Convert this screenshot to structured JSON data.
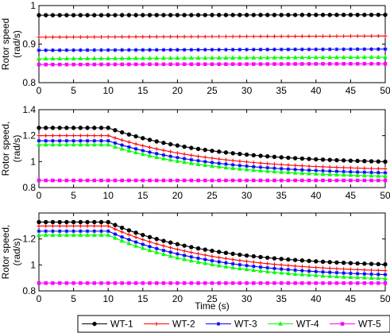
{
  "figure": {
    "xlabel": "Time (s)",
    "legend": {
      "placement": "bottom-center",
      "entries": [
        {
          "name": "WT-1",
          "color": "#000000",
          "marker": "circle"
        },
        {
          "name": "WT-2",
          "color": "#ff0000",
          "marker": "plus"
        },
        {
          "name": "WT-3",
          "color": "#0000ff",
          "marker": "star"
        },
        {
          "name": "WT-4",
          "color": "#00ff00",
          "marker": "triangle"
        },
        {
          "name": "WT-5",
          "color": "#ff00ff",
          "marker": "square"
        }
      ]
    }
  },
  "chart_data": [
    {
      "type": "line",
      "ylabel": [
        "Rotor speed",
        "(rad/s)"
      ],
      "xlim": [
        0,
        50
      ],
      "ylim": [
        0.8,
        1.0
      ],
      "xticks": [
        0,
        5,
        10,
        15,
        20,
        25,
        30,
        35,
        40,
        45,
        50
      ],
      "yticks": [
        0.8,
        0.9,
        1.0
      ],
      "ytick_labels": [
        "0.8",
        "0.9",
        "1"
      ],
      "grid": false,
      "series": [
        {
          "name": "WT-1",
          "model": "flat",
          "y0": 0.975,
          "yend": 0.976
        },
        {
          "name": "WT-2",
          "model": "flat",
          "y0": 0.918,
          "yend": 0.921
        },
        {
          "name": "WT-3",
          "model": "flat",
          "y0": 0.884,
          "yend": 0.887
        },
        {
          "name": "WT-4",
          "model": "flat",
          "y0": 0.862,
          "yend": 0.866
        },
        {
          "name": "WT-5",
          "model": "flat",
          "y0": 0.847,
          "yend": 0.849
        }
      ]
    },
    {
      "type": "line",
      "ylabel": [
        "Rotor speed,",
        "(rad/s)"
      ],
      "xlim": [
        0,
        50
      ],
      "ylim": [
        0.8,
        1.4
      ],
      "xticks": [
        0,
        5,
        10,
        15,
        20,
        25,
        30,
        35,
        40,
        45,
        50
      ],
      "yticks": [
        0.8,
        1.0,
        1.2,
        1.4
      ],
      "ytick_labels": [
        "0.8",
        "1",
        "1.2",
        "1.4"
      ],
      "grid": false,
      "series": [
        {
          "name": "WT-1",
          "model": "decay",
          "y0": 1.26,
          "t0": 10,
          "yend": 0.98,
          "tau": 15
        },
        {
          "name": "WT-2",
          "model": "decay",
          "y0": 1.2,
          "t0": 10,
          "yend": 0.925,
          "tau": 15
        },
        {
          "name": "WT-3",
          "model": "decay",
          "y0": 1.16,
          "t0": 10,
          "yend": 0.895,
          "tau": 15
        },
        {
          "name": "WT-4",
          "model": "decay",
          "y0": 1.13,
          "t0": 10,
          "yend": 0.87,
          "tau": 15
        },
        {
          "name": "WT-5",
          "model": "flat",
          "y0": 0.855,
          "yend": 0.855
        }
      ]
    },
    {
      "type": "line",
      "ylabel": [
        "Rotor speed,",
        "(rad/s)"
      ],
      "xlim": [
        0,
        50
      ],
      "ylim": [
        0.8,
        1.4
      ],
      "xticks": [
        0,
        5,
        10,
        15,
        20,
        25,
        30,
        35,
        40,
        45,
        50
      ],
      "yticks": [
        0.8,
        1.0,
        1.2
      ],
      "ytick_labels": [
        "0.8",
        "1",
        "1.2"
      ],
      "grid": false,
      "series": [
        {
          "name": "WT-1",
          "model": "decay",
          "y0": 1.33,
          "t0": 10,
          "yend": 0.98,
          "tau": 15
        },
        {
          "name": "WT-2",
          "model": "decay",
          "y0": 1.3,
          "t0": 10,
          "yend": 0.93,
          "tau": 15
        },
        {
          "name": "WT-3",
          "model": "decay",
          "y0": 1.26,
          "t0": 10,
          "yend": 0.9,
          "tau": 15
        },
        {
          "name": "WT-4",
          "model": "decay",
          "y0": 1.23,
          "t0": 10,
          "yend": 0.87,
          "tau": 15
        },
        {
          "name": "WT-5",
          "model": "flat",
          "y0": 0.86,
          "yend": 0.86
        }
      ]
    }
  ]
}
